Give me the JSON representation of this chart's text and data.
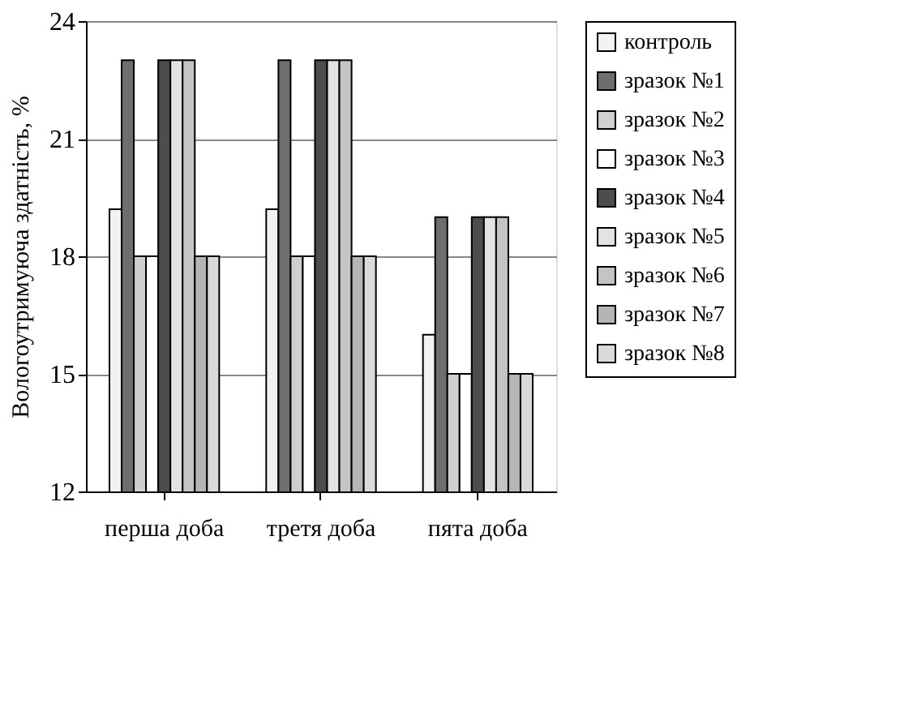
{
  "chart_data": {
    "type": "bar",
    "ylabel": "Вологоутримуюча здатність, %",
    "categories": [
      "перша доба",
      "третя доба",
      "пята доба"
    ],
    "series": [
      {
        "name": "контроль",
        "color": "#f2f2f2",
        "values": [
          19.2,
          19.2,
          16
        ]
      },
      {
        "name": "зразок №1",
        "color": "#6e6e6e",
        "values": [
          23,
          23,
          19
        ]
      },
      {
        "name": "зразок №2",
        "color": "#cfcfcf",
        "values": [
          18,
          18,
          15
        ]
      },
      {
        "name": "зразок №3",
        "color": "#ffffff",
        "values": [
          18,
          18,
          15
        ]
      },
      {
        "name": "зразок №4",
        "color": "#4d4d4d",
        "values": [
          23,
          23,
          19
        ]
      },
      {
        "name": "зразок №5",
        "color": "#e3e3e3",
        "values": [
          23,
          23,
          19
        ]
      },
      {
        "name": "зразок №6",
        "color": "#c4c4c4",
        "values": [
          23,
          23,
          19
        ]
      },
      {
        "name": "зразок №7",
        "color": "#b5b5b5",
        "values": [
          18,
          18,
          15
        ]
      },
      {
        "name": "зразок №8",
        "color": "#dadada",
        "values": [
          18,
          18,
          15
        ]
      }
    ],
    "ylim": [
      12,
      24
    ],
    "yticks": [
      12,
      15,
      18,
      21,
      24
    ],
    "grid": "y",
    "legend": "right"
  }
}
